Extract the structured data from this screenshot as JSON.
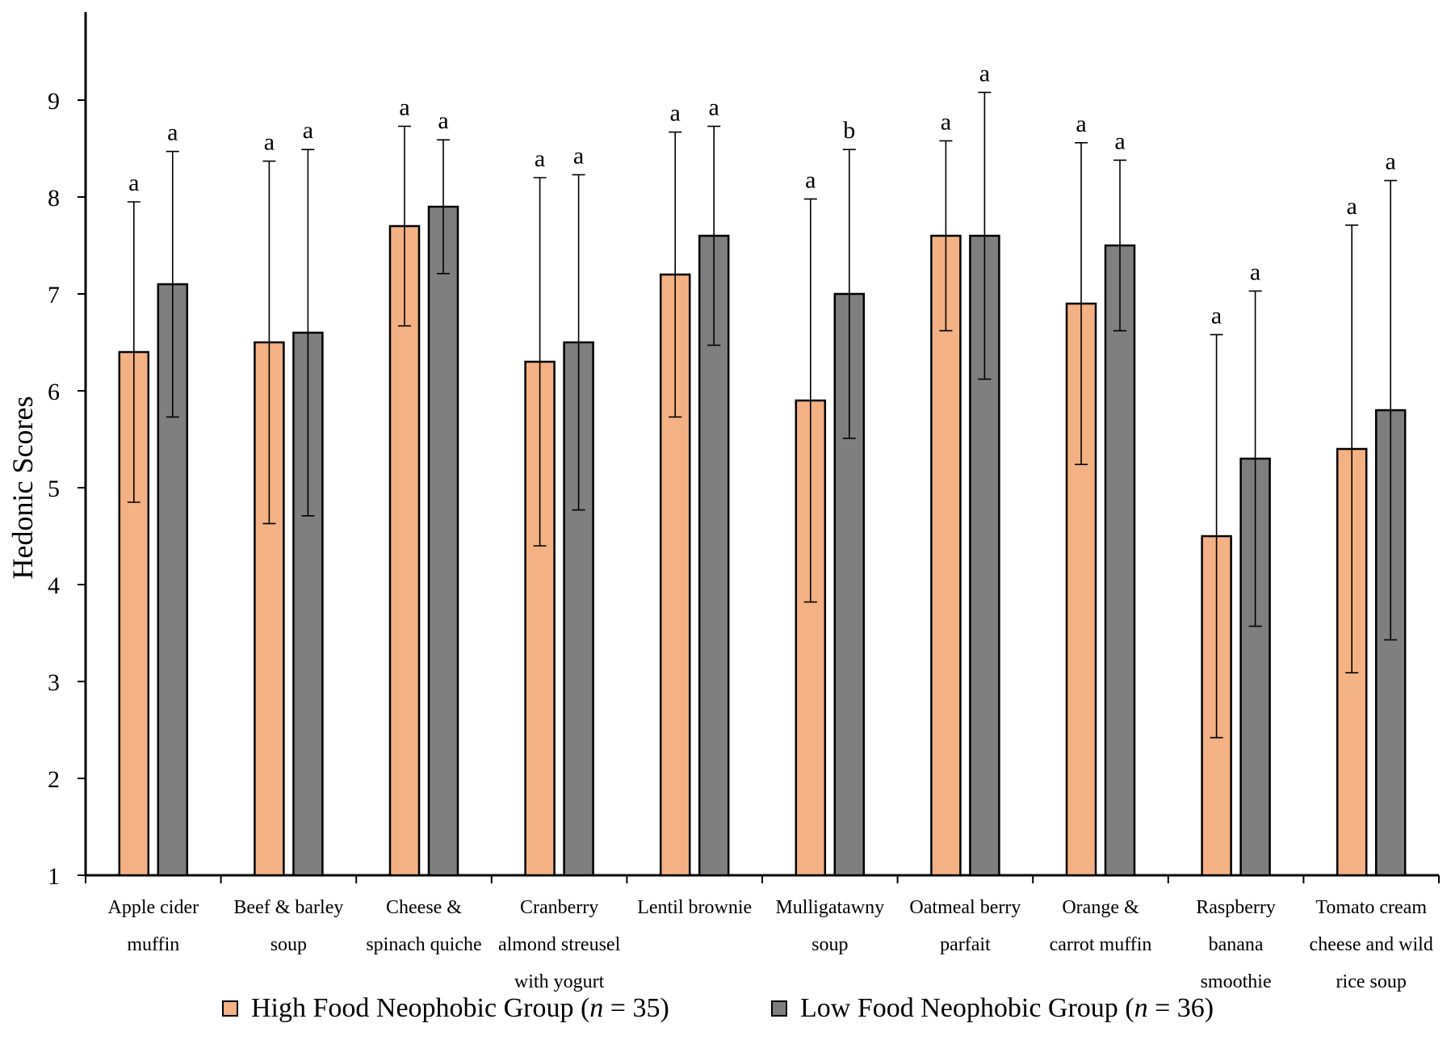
{
  "chart_data": {
    "type": "bar",
    "title": "",
    "xlabel": "",
    "ylabel": "Hedonic Scores",
    "ylim": [
      1,
      9.9
    ],
    "yticks": [
      1,
      2,
      3,
      4,
      5,
      6,
      7,
      8,
      9
    ],
    "grid": false,
    "categories": [
      [
        "Apple  cider",
        "muffin"
      ],
      [
        "Beef & barley",
        "soup"
      ],
      [
        "Cheese &",
        "spinach quiche"
      ],
      [
        "Cranberry",
        "almond streusel",
        "with yogurt"
      ],
      [
        "Lentil  brownie"
      ],
      [
        "Mulligatawny",
        "soup"
      ],
      [
        "Oatmeal berry",
        "parfait"
      ],
      [
        "Orange &",
        "carrot muffin"
      ],
      [
        "Raspberry",
        "banana",
        "smoothie"
      ],
      [
        "Tomato cream",
        "cheese and wild",
        "rice soup"
      ]
    ],
    "series": [
      {
        "name": "High  Food Neophobic Group",
        "n_label": "n",
        "n_value": "= 35)",
        "color": "#F4B183",
        "values": [
          6.4,
          6.5,
          7.7,
          6.3,
          7.2,
          5.9,
          7.6,
          6.9,
          4.5,
          5.4
        ],
        "error": [
          1.55,
          1.87,
          1.03,
          1.9,
          1.47,
          2.08,
          0.98,
          1.66,
          2.08,
          2.31
        ],
        "sig": [
          "a",
          "a",
          "a",
          "a",
          "a",
          "a",
          "a",
          "a",
          "a",
          "a"
        ]
      },
      {
        "name": "Low Food Neophobic Group",
        "n_label": "n",
        "n_value": "= 36)",
        "color": "#7F7F7F",
        "values": [
          7.1,
          6.6,
          7.9,
          6.5,
          7.6,
          7.0,
          7.6,
          7.5,
          5.3,
          5.8
        ],
        "error": [
          1.37,
          1.89,
          0.69,
          1.73,
          1.13,
          1.49,
          1.48,
          0.88,
          1.73,
          2.37
        ],
        "sig": [
          "a",
          "a",
          "a",
          "a",
          "a",
          "b",
          "a",
          "a",
          "a",
          "a"
        ]
      }
    ],
    "legend_position": "bottom"
  }
}
